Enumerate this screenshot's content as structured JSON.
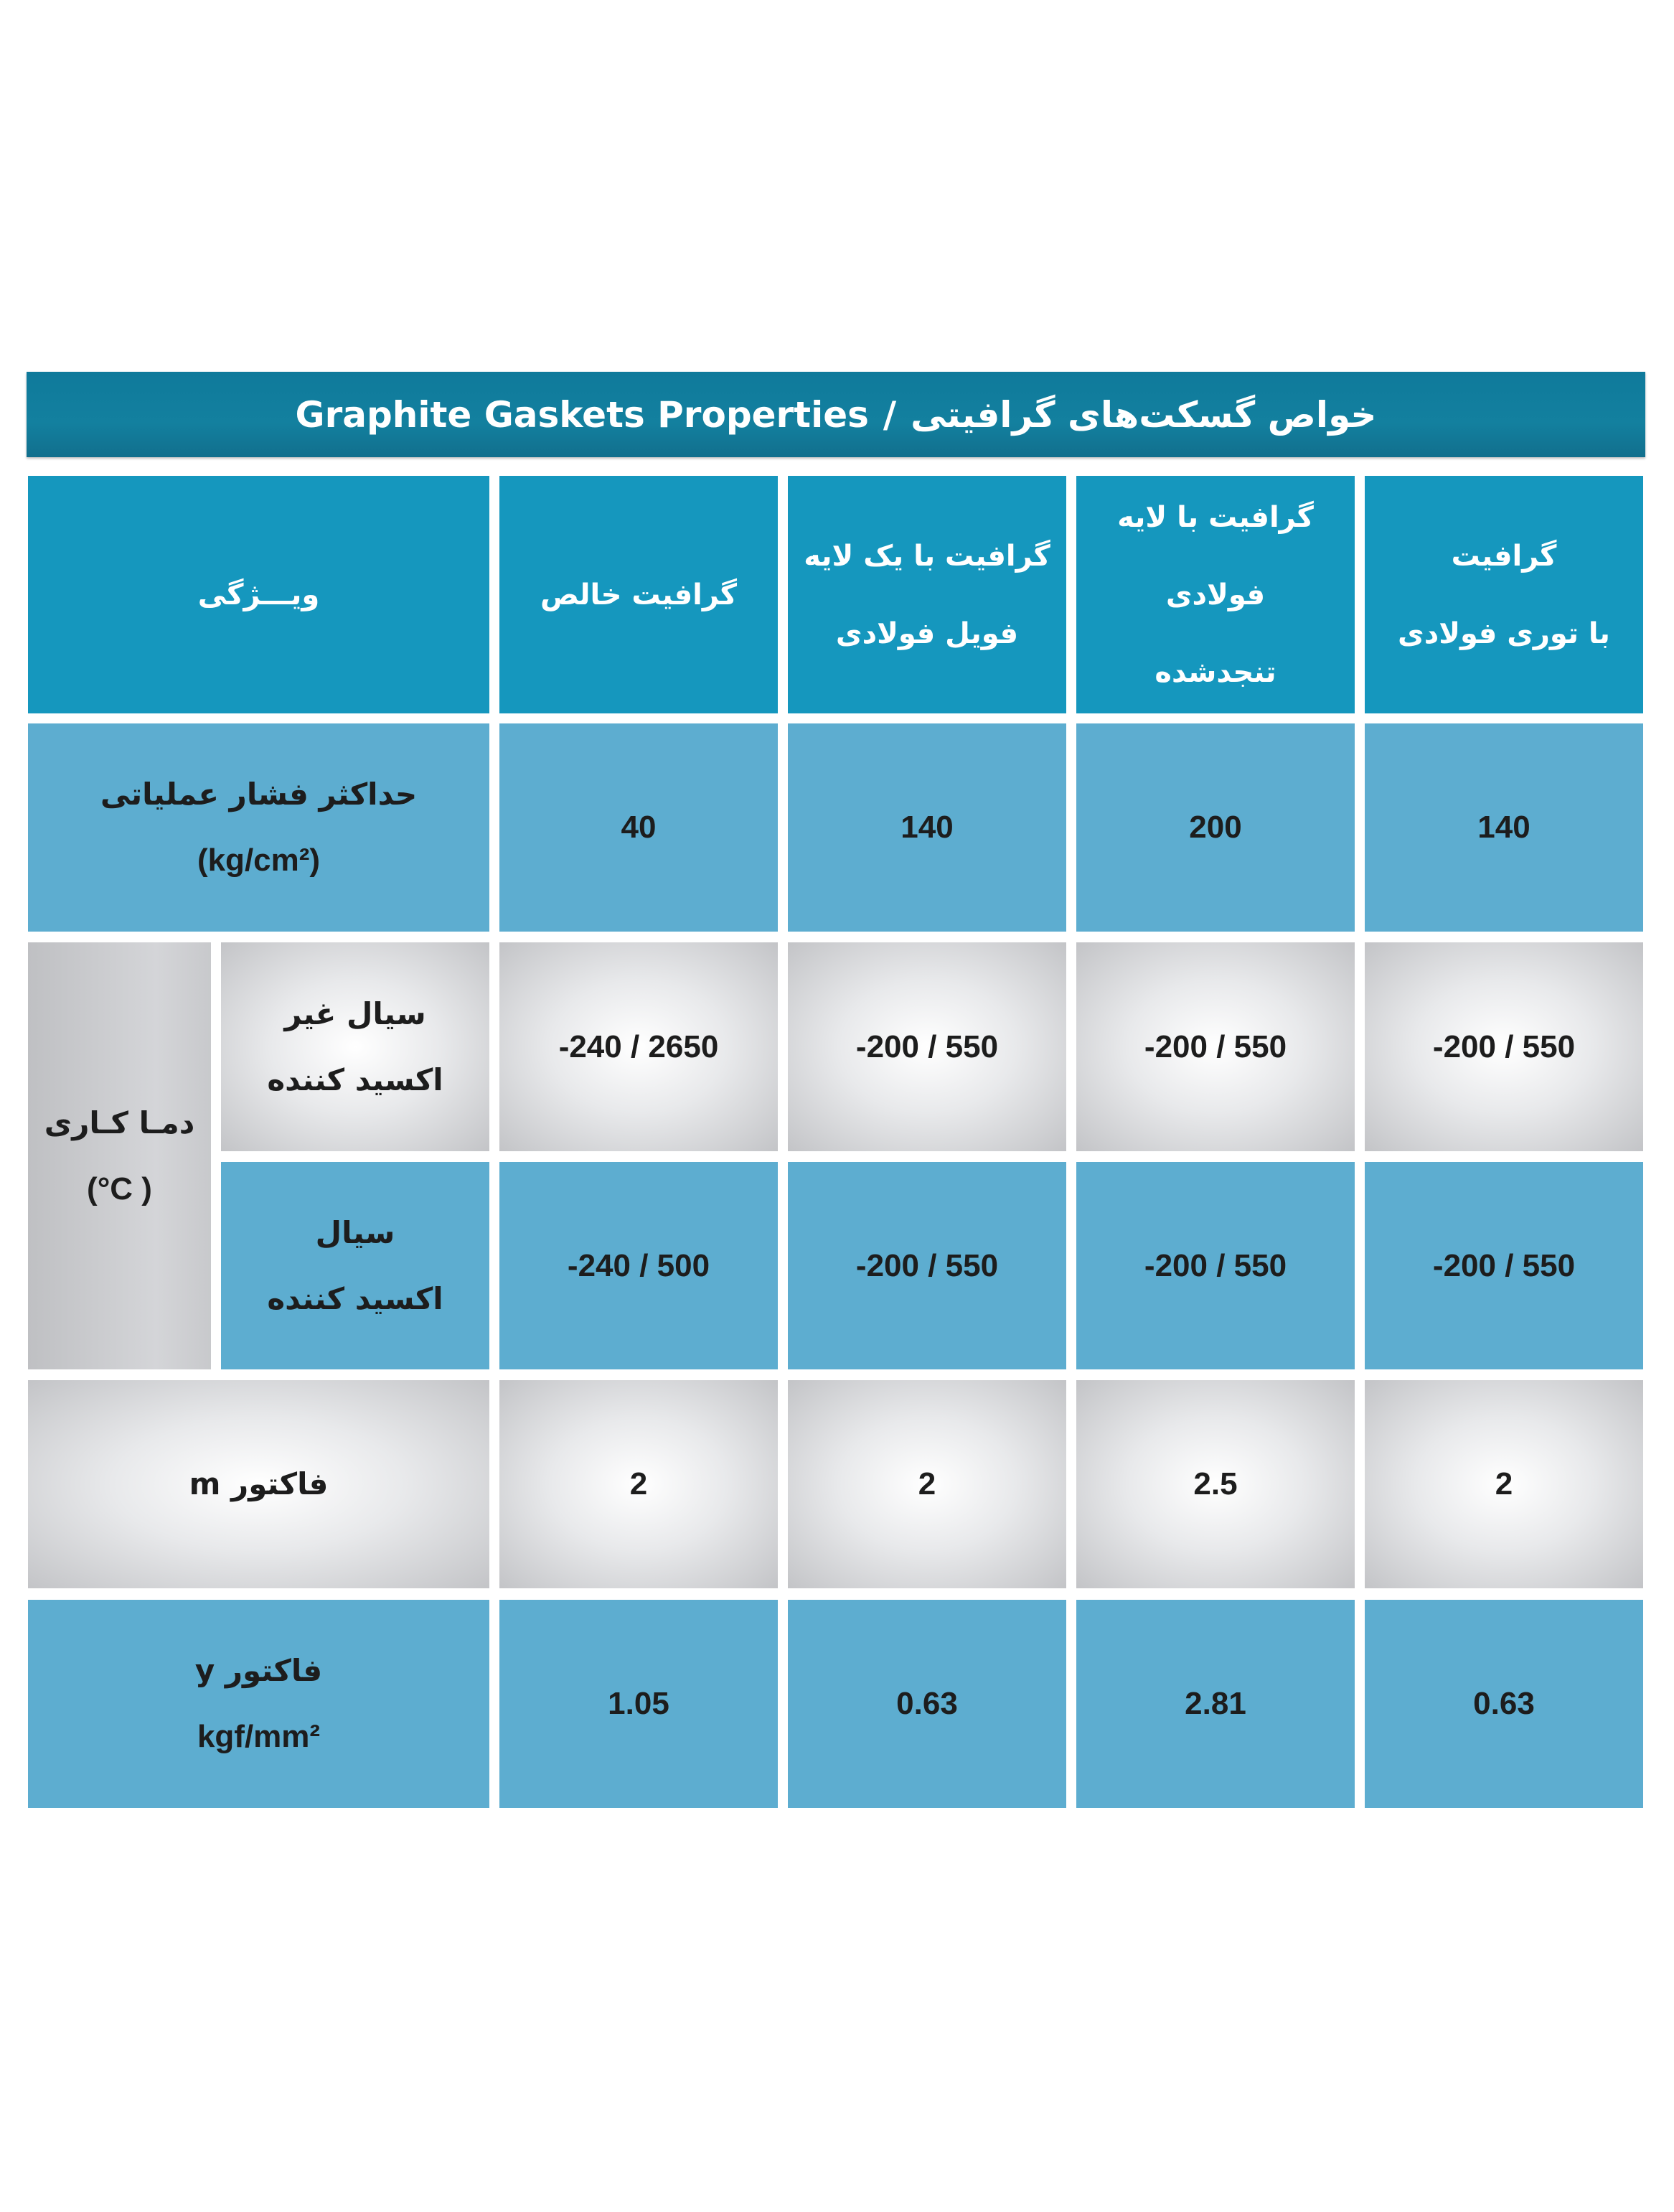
{
  "title": {
    "en": "Graphite Gaskets Properties",
    "separator": "/",
    "fa": "خواص گسکت‌های گرافیتی"
  },
  "colors": {
    "title_bar": "#127a9a",
    "header": "#1597be",
    "row_blue": "#5dadd0",
    "row_gray": "#d8d9dc"
  },
  "header": {
    "feature": "ویـــژگی",
    "columns": [
      [
        "گرافیت خالص"
      ],
      [
        "گرافیت با یک لایه",
        "فویل فولادی"
      ],
      [
        "گرافیت با لایه فولادی",
        "تنجدشده"
      ],
      [
        "گرافیت",
        "با توری فولادی"
      ]
    ]
  },
  "rows": {
    "pressure": {
      "label": [
        "حداکثر فشار عملیاتی",
        "(kg/cm²)"
      ],
      "values": [
        "40",
        "140",
        "200",
        "140"
      ]
    },
    "temperature": {
      "label": [
        "دمـا کـاری",
        "(°C )"
      ],
      "non_oxidizing": {
        "label": [
          "سیال غیر",
          "اکسید کننده"
        ],
        "values": [
          "-240 / 2650",
          "-200 / 550",
          "-200 / 550",
          "-200 / 550"
        ]
      },
      "oxidizing": {
        "label": [
          "سیال",
          "اکسید کننده"
        ],
        "values": [
          "-240 /  500",
          "-200 /  550",
          "-200 /  550",
          "-200 / 550"
        ]
      }
    },
    "m_factor": {
      "label": [
        "فاکتور m"
      ],
      "values": [
        "2",
        "2",
        "2.5",
        "2"
      ]
    },
    "y_factor": {
      "label": [
        "فاکتور y",
        "kgf/mm²"
      ],
      "values": [
        "1.05",
        "0.63",
        "2.81",
        "0.63"
      ]
    }
  }
}
